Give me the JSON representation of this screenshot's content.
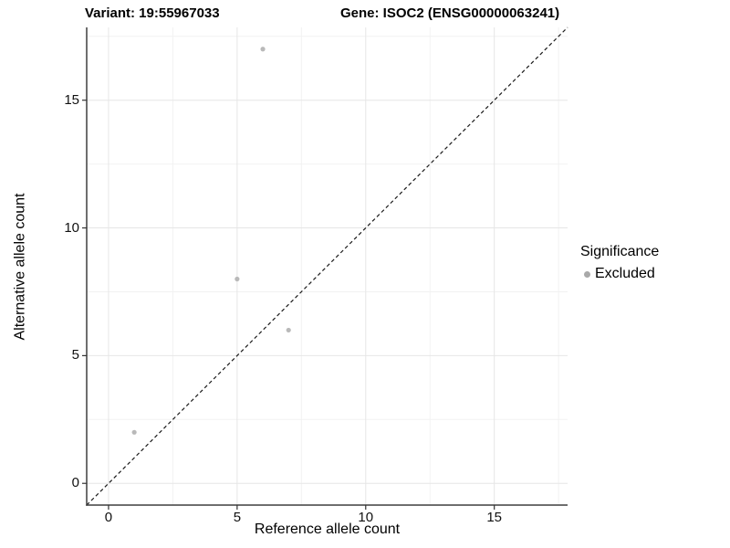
{
  "titles": {
    "variant": "Variant: 19:55967033",
    "gene": "Gene: ISOC2 (ENSG00000063241)"
  },
  "colors": {
    "background": "#ffffff",
    "text": "#000000",
    "grid_major": "#e6e6e6",
    "grid_minor": "#f2f2f2",
    "axis_line": "#3f3f3f",
    "tick_mark": "#333333",
    "diagonal_line": "#1a1a1a",
    "point": "#b9b9b9",
    "legend_dot": "#a9a9a9"
  },
  "chart_data": {
    "type": "scatter",
    "title_left": "Variant: 19:55967033",
    "title_right": "Gene: ISOC2 (ENSG00000063241)",
    "xlabel": "Reference allele count",
    "ylabel": "Alternative allele count",
    "xlim": [
      -0.85,
      17.85
    ],
    "ylim": [
      -0.85,
      17.85
    ],
    "x_major_ticks": [
      0,
      5,
      10,
      15
    ],
    "y_major_ticks": [
      0,
      5,
      10,
      15
    ],
    "x_minor_gridlines": [
      2.5,
      7.5,
      12.5,
      17.5
    ],
    "y_minor_gridlines": [
      2.5,
      7.5,
      12.5,
      17.5
    ],
    "grid": "major-and-minor, light gray on white panel",
    "identity_line": {
      "style": "dashed",
      "x1": -0.85,
      "y1": -0.85,
      "x2": 17.85,
      "y2": 17.85
    },
    "series": [
      {
        "name": "Excluded",
        "points": [
          {
            "x": 1,
            "y": 2
          },
          {
            "x": 5,
            "y": 8
          },
          {
            "x": 6,
            "y": 17
          },
          {
            "x": 7,
            "y": 6
          }
        ]
      }
    ],
    "legend": {
      "position": "right",
      "title": "Significance",
      "items": [
        {
          "label": "Excluded"
        }
      ]
    }
  }
}
